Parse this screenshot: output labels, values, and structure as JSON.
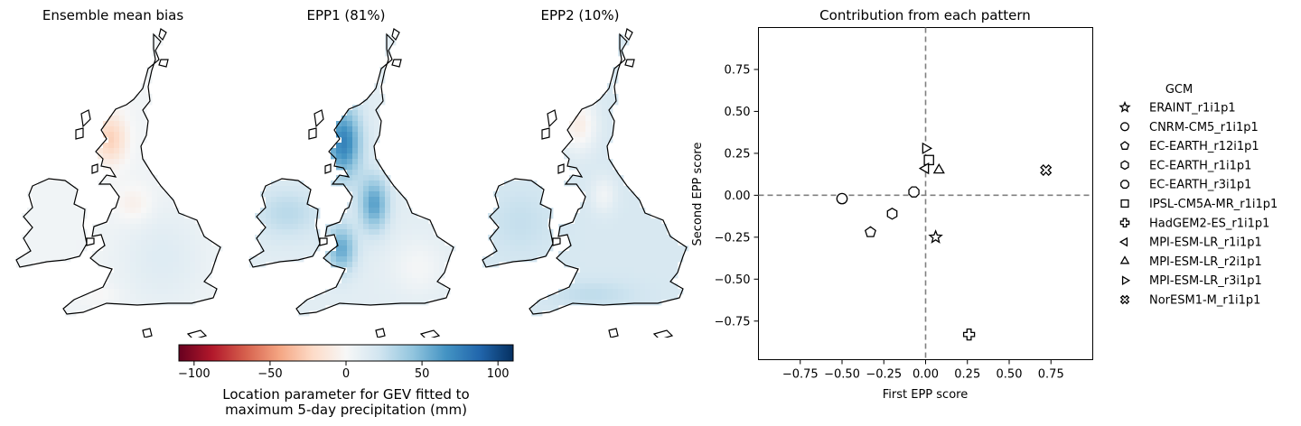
{
  "maps": [
    {
      "title": "Ensemble mean bias",
      "pattern": "bias"
    },
    {
      "title": "EPP1 (81%)",
      "pattern": "epp1"
    },
    {
      "title": "EPP2 (10%)",
      "pattern": "epp2"
    }
  ],
  "colorbar": {
    "colormap": "RdBu",
    "min": -110,
    "max": 110,
    "ticks": [
      -100,
      -50,
      0,
      50,
      100
    ],
    "tick_labels": [
      "−100",
      "−50",
      "0",
      "50",
      "100"
    ],
    "label_line1": "Location parameter for GEV fitted to",
    "label_line2": "maximum 5-day precipitation (mm)"
  },
  "chart_data": {
    "type": "scatter",
    "title": "Contribution from each pattern",
    "xlabel": "First EPP score",
    "ylabel": "Second EPP score",
    "xlim": [
      -1.0,
      1.0
    ],
    "ylim": [
      -0.98,
      1.0
    ],
    "xticks": [
      -0.75,
      -0.5,
      -0.25,
      0.0,
      0.25,
      0.5,
      0.75
    ],
    "xtick_labels": [
      "−0.75",
      "−0.50",
      "−0.25",
      "0.00",
      "0.25",
      "0.50",
      "0.75"
    ],
    "yticks": [
      -0.75,
      -0.5,
      -0.25,
      0.0,
      0.25,
      0.5,
      0.75
    ],
    "ytick_labels": [
      "−0.75",
      "−0.50",
      "−0.25",
      "0.00",
      "0.25",
      "0.50",
      "0.75"
    ],
    "reference_lines": {
      "x": 0,
      "y": 0,
      "style": "dashed",
      "color": "#808080"
    },
    "legend_title": "GCM",
    "legend_position": "outside-right",
    "points": [
      {
        "name": "ERAINT_r1i1p1",
        "marker": "star",
        "x": 0.06,
        "y": -0.25
      },
      {
        "name": "CNRM-CM5_r1i1p1",
        "marker": "circle",
        "x": -0.5,
        "y": -0.02
      },
      {
        "name": "EC-EARTH_r12i1p1",
        "marker": "pentagon",
        "x": -0.33,
        "y": -0.22
      },
      {
        "name": "EC-EARTH_r1i1p1",
        "marker": "hexagon",
        "x": -0.2,
        "y": -0.11
      },
      {
        "name": "EC-EARTH_r3i1p1",
        "marker": "octagon",
        "x": -0.07,
        "y": 0.02
      },
      {
        "name": "IPSL-CM5A-MR_r1i1p1",
        "marker": "square",
        "x": 0.02,
        "y": 0.21
      },
      {
        "name": "HadGEM2-ES_r1i1p1",
        "marker": "plus",
        "x": 0.26,
        "y": -0.83
      },
      {
        "name": "MPI-ESM-LR_r1i1p1",
        "marker": "triangle-left",
        "x": 0.0,
        "y": 0.16
      },
      {
        "name": "MPI-ESM-LR_r2i1p1",
        "marker": "triangle-up",
        "x": 0.08,
        "y": 0.15
      },
      {
        "name": "MPI-ESM-LR_r3i1p1",
        "marker": "triangle-right",
        "x": 0.0,
        "y": 0.28
      },
      {
        "name": "NorESM1-M_r1i1p1",
        "marker": "x",
        "x": 0.72,
        "y": 0.15
      }
    ]
  }
}
